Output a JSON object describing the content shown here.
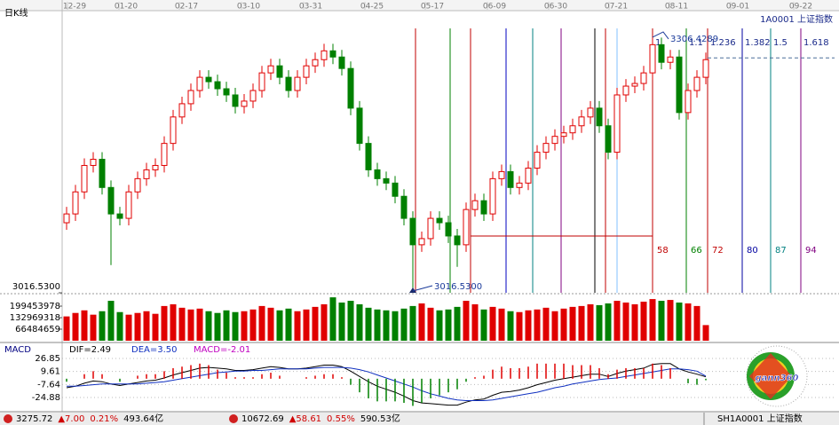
{
  "chart_data": [
    {
      "type": "candlestick",
      "title": "日K线",
      "subtitle": "1A0001 上证指数",
      "up_color": "#e00000",
      "down_color": "#008000",
      "open": [
        3096,
        3106,
        3131,
        3161,
        3168,
        3136,
        3106,
        3101,
        3131,
        3146,
        3156,
        3161,
        3186,
        3216,
        3231,
        3246,
        3261,
        3256,
        3248,
        3241,
        3228,
        3234,
        3246,
        3266,
        3274,
        3261,
        3246,
        3261,
        3274,
        3281,
        3291,
        3284,
        3271,
        3226,
        3186,
        3156,
        3146,
        3141,
        3126,
        3101,
        3071,
        3078,
        3101,
        3096,
        3081,
        3071,
        3111,
        3121,
        3106,
        3146,
        3154,
        3136,
        3141,
        3158,
        3176,
        3186,
        3194,
        3198,
        3206,
        3216,
        3226,
        3206,
        3176,
        3241,
        3251,
        3254,
        3266,
        3298,
        3278,
        3284,
        3221,
        3246,
        3261
      ],
      "high": [
        3114,
        3139,
        3169,
        3176,
        3176,
        3144,
        3114,
        3139,
        3154,
        3164,
        3169,
        3194,
        3224,
        3239,
        3254,
        3269,
        3269,
        3264,
        3256,
        3249,
        3242,
        3254,
        3274,
        3282,
        3282,
        3269,
        3269,
        3282,
        3289,
        3299,
        3299,
        3292,
        3279,
        3234,
        3194,
        3164,
        3154,
        3149,
        3134,
        3109,
        3086,
        3109,
        3109,
        3104,
        3089,
        3119,
        3129,
        3129,
        3154,
        3162,
        3162,
        3149,
        3166,
        3184,
        3194,
        3202,
        3206,
        3214,
        3224,
        3234,
        3234,
        3214,
        3249,
        3259,
        3262,
        3274,
        3306.4289,
        3306,
        3292,
        3292,
        3254,
        3269,
        3289
      ],
      "low": [
        3088,
        3098,
        3123,
        3153,
        3128,
        3048,
        3093,
        3093,
        3123,
        3138,
        3148,
        3153,
        3178,
        3208,
        3223,
        3238,
        3248,
        3240,
        3233,
        3220,
        3220,
        3226,
        3238,
        3258,
        3253,
        3238,
        3238,
        3253,
        3266,
        3273,
        3276,
        3263,
        3218,
        3178,
        3148,
        3138,
        3133,
        3118,
        3093,
        3016.53,
        3063,
        3070,
        3088,
        3073,
        3046,
        3063,
        3103,
        3098,
        3098,
        3138,
        3128,
        3128,
        3133,
        3150,
        3168,
        3178,
        3186,
        3190,
        3198,
        3208,
        3198,
        3168,
        3168,
        3233,
        3243,
        3246,
        3258,
        3270,
        3270,
        3213,
        3213,
        3238,
        3253
      ],
      "close": [
        3106,
        3131,
        3161,
        3168,
        3136,
        3106,
        3101,
        3131,
        3146,
        3156,
        3161,
        3186,
        3216,
        3231,
        3246,
        3261,
        3256,
        3248,
        3241,
        3228,
        3234,
        3246,
        3266,
        3274,
        3261,
        3246,
        3261,
        3274,
        3281,
        3291,
        3284,
        3271,
        3226,
        3186,
        3156,
        3146,
        3141,
        3126,
        3101,
        3071,
        3078,
        3101,
        3096,
        3081,
        3071,
        3111,
        3121,
        3106,
        3146,
        3154,
        3136,
        3141,
        3158,
        3176,
        3186,
        3194,
        3198,
        3206,
        3216,
        3226,
        3206,
        3176,
        3241,
        3251,
        3254,
        3266,
        3298,
        3278,
        3284,
        3221,
        3246,
        3261,
        3281
      ],
      "xlim": [
        -0.5,
        86.5
      ],
      "xticks": [
        {
          "value": 0.9,
          "label": "12-29"
        },
        {
          "value": 6.7,
          "label": "01-20"
        },
        {
          "value": 13.5,
          "label": "02-17"
        },
        {
          "value": 20.5,
          "label": "03-10"
        },
        {
          "value": 27.5,
          "label": "03-31"
        },
        {
          "value": 34.4,
          "label": "04-25"
        },
        {
          "value": 41.2,
          "label": "05-17"
        },
        {
          "value": 48.2,
          "label": "06-09"
        },
        {
          "value": 55.1,
          "label": "06-30"
        },
        {
          "value": 61.9,
          "label": "07-21"
        },
        {
          "value": 68.7,
          "label": "08-11"
        },
        {
          "value": 75.6,
          "label": "09-01"
        },
        {
          "value": 82.7,
          "label": "09-22"
        }
      ],
      "ylim": [
        3016.53,
        3336.6
      ],
      "yticks": [
        {
          "value": 3016.53,
          "label": "3016.5300"
        }
      ],
      "annotations": [
        {
          "x": 66,
          "y": 3306.4289,
          "color": "#1a3a9a"
        },
        {
          "x": 39,
          "y": 3016.53,
          "label": "3016.5300",
          "color": "#1a3a9a"
        }
      ],
      "time_lines": [
        {
          "x": 39.3,
          "color": "#c00000"
        },
        {
          "x": 43.2,
          "color": "#008000"
        },
        {
          "x": 45.5,
          "color": "#c00000"
        },
        {
          "x": 49.5,
          "color": "#0000c0"
        },
        {
          "x": 52.5,
          "color": "#008080"
        },
        {
          "x": 55.7,
          "color": "#800080"
        },
        {
          "x": 59.5,
          "color": "#000000"
        },
        {
          "x": 60.7,
          "color": "#c00000"
        },
        {
          "x": 62,
          "color": "#80c0ff"
        },
        {
          "x": 66,
          "color": "#c00000",
          "count": 58,
          "ratio": 1
        },
        {
          "x": 69.8,
          "color": "#008000",
          "count": 66,
          "ratio": 1.1
        },
        {
          "x": 72.2,
          "color": "#c00000",
          "count": 72,
          "ratio": 1.236
        },
        {
          "x": 76.1,
          "color": "#0000a0",
          "count": 80,
          "ratio": 1.382
        },
        {
          "x": 79.3,
          "color": "#008080",
          "count": 87,
          "ratio": 1.5
        },
        {
          "x": 82.7,
          "color": "#800080",
          "count": 94,
          "ratio": 1.618
        }
      ],
      "levels": [
        {
          "y": 3081,
          "x_from": 45.5,
          "x_to": 66,
          "color": "#c00000"
        },
        {
          "y": 3283,
          "x_from": 72.2,
          "x_to": 86.5,
          "color": "#4a6e9a",
          "dashed": true
        }
      ]
    },
    {
      "type": "volume",
      "values": [
        140000000,
        160000000,
        175000000,
        150000000,
        170000000,
        230000000,
        165000000,
        150000000,
        160000000,
        170000000,
        155000000,
        200000000,
        210000000,
        190000000,
        180000000,
        185000000,
        170000000,
        160000000,
        175000000,
        165000000,
        170000000,
        180000000,
        200000000,
        190000000,
        175000000,
        185000000,
        170000000,
        180000000,
        195000000,
        210000000,
        250000000,
        220000000,
        230000000,
        210000000,
        190000000,
        180000000,
        175000000,
        170000000,
        185000000,
        200000000,
        215000000,
        190000000,
        175000000,
        180000000,
        195000000,
        230000000,
        210000000,
        180000000,
        195000000,
        185000000,
        170000000,
        165000000,
        175000000,
        180000000,
        190000000,
        170000000,
        185000000,
        195000000,
        200000000,
        210000000,
        205000000,
        215000000,
        230000000,
        220000000,
        210000000,
        225000000,
        240000000,
        230000000,
        235000000,
        220000000,
        215000000,
        200000000,
        90000000
      ],
      "ylim": [
        0,
        265938637
      ],
      "yticks": [
        199453978,
        132969318,
        66484659
      ]
    },
    {
      "type": "macd",
      "title": "MACD",
      "up_color": "#e00000",
      "down_color": "#008000",
      "ylim": [
        -41.34,
        36.25
      ],
      "yticks": [
        26.85,
        9.61,
        -7.64,
        -24.88
      ],
      "series": [
        {
          "name": "DIF=2.49",
          "color": "#000000",
          "values": [
            -12,
            -10,
            -6,
            -3,
            -4,
            -7,
            -9,
            -7,
            -5,
            -3,
            -2,
            1,
            5,
            8,
            11,
            14,
            15,
            14,
            13,
            11,
            11,
            12,
            14,
            16,
            15,
            13,
            13,
            14,
            16,
            18,
            18,
            16,
            10,
            3,
            -4,
            -10,
            -14,
            -18,
            -23,
            -29,
            -32,
            -33,
            -34,
            -35,
            -35,
            -31,
            -28,
            -27,
            -22,
            -18,
            -17,
            -15,
            -12,
            -8,
            -5,
            -2,
            0,
            2,
            4,
            6,
            6,
            3,
            7,
            10,
            12,
            14,
            19,
            20,
            20,
            13,
            9,
            6,
            2.49
          ]
        },
        {
          "name": "DEA=3.50",
          "color": "#1030c0",
          "values": [
            -10,
            -10,
            -9,
            -8,
            -7,
            -7,
            -7,
            -7,
            -7,
            -6,
            -5,
            -4,
            -2,
            0,
            2,
            4,
            6,
            8,
            9,
            10,
            10,
            11,
            11,
            12,
            13,
            13,
            13,
            13,
            14,
            15,
            15,
            15,
            14,
            12,
            9,
            5,
            1,
            -3,
            -7,
            -11,
            -16,
            -20,
            -23,
            -26,
            -28,
            -29,
            -29,
            -29,
            -28,
            -26,
            -24,
            -22,
            -20,
            -18,
            -15,
            -12,
            -10,
            -7,
            -5,
            -3,
            -1,
            0,
            1,
            3,
            5,
            7,
            9,
            11,
            13,
            13,
            12,
            10,
            3.5
          ]
        },
        {
          "name": "MACD=-2.01",
          "color": "#c000c0",
          "histogram": true,
          "values": [
            -4,
            0,
            6,
            10,
            6,
            0,
            -4,
            0,
            4,
            6,
            6,
            10,
            14,
            16,
            18,
            20,
            18,
            12,
            8,
            2,
            2,
            2,
            6,
            8,
            4,
            0,
            0,
            2,
            4,
            6,
            6,
            2,
            -8,
            -18,
            -26,
            -30,
            -30,
            -30,
            -32,
            -36,
            -32,
            -26,
            -22,
            -18,
            -14,
            -4,
            2,
            4,
            12,
            16,
            14,
            14,
            16,
            20,
            20,
            20,
            20,
            18,
            18,
            18,
            14,
            6,
            12,
            14,
            14,
            14,
            20,
            18,
            14,
            0,
            -6,
            -8,
            -2.01
          ]
        }
      ]
    }
  ],
  "status_bar": [
    [
      "3275.72",
      "▲7.00",
      "0.21%",
      "493.64亿"
    ],
    [
      "10672.69",
      "▲58.61",
      "0.55%",
      "590.53亿"
    ],
    [
      "SH1A0001 上证指数"
    ]
  ],
  "logo": "gann360"
}
